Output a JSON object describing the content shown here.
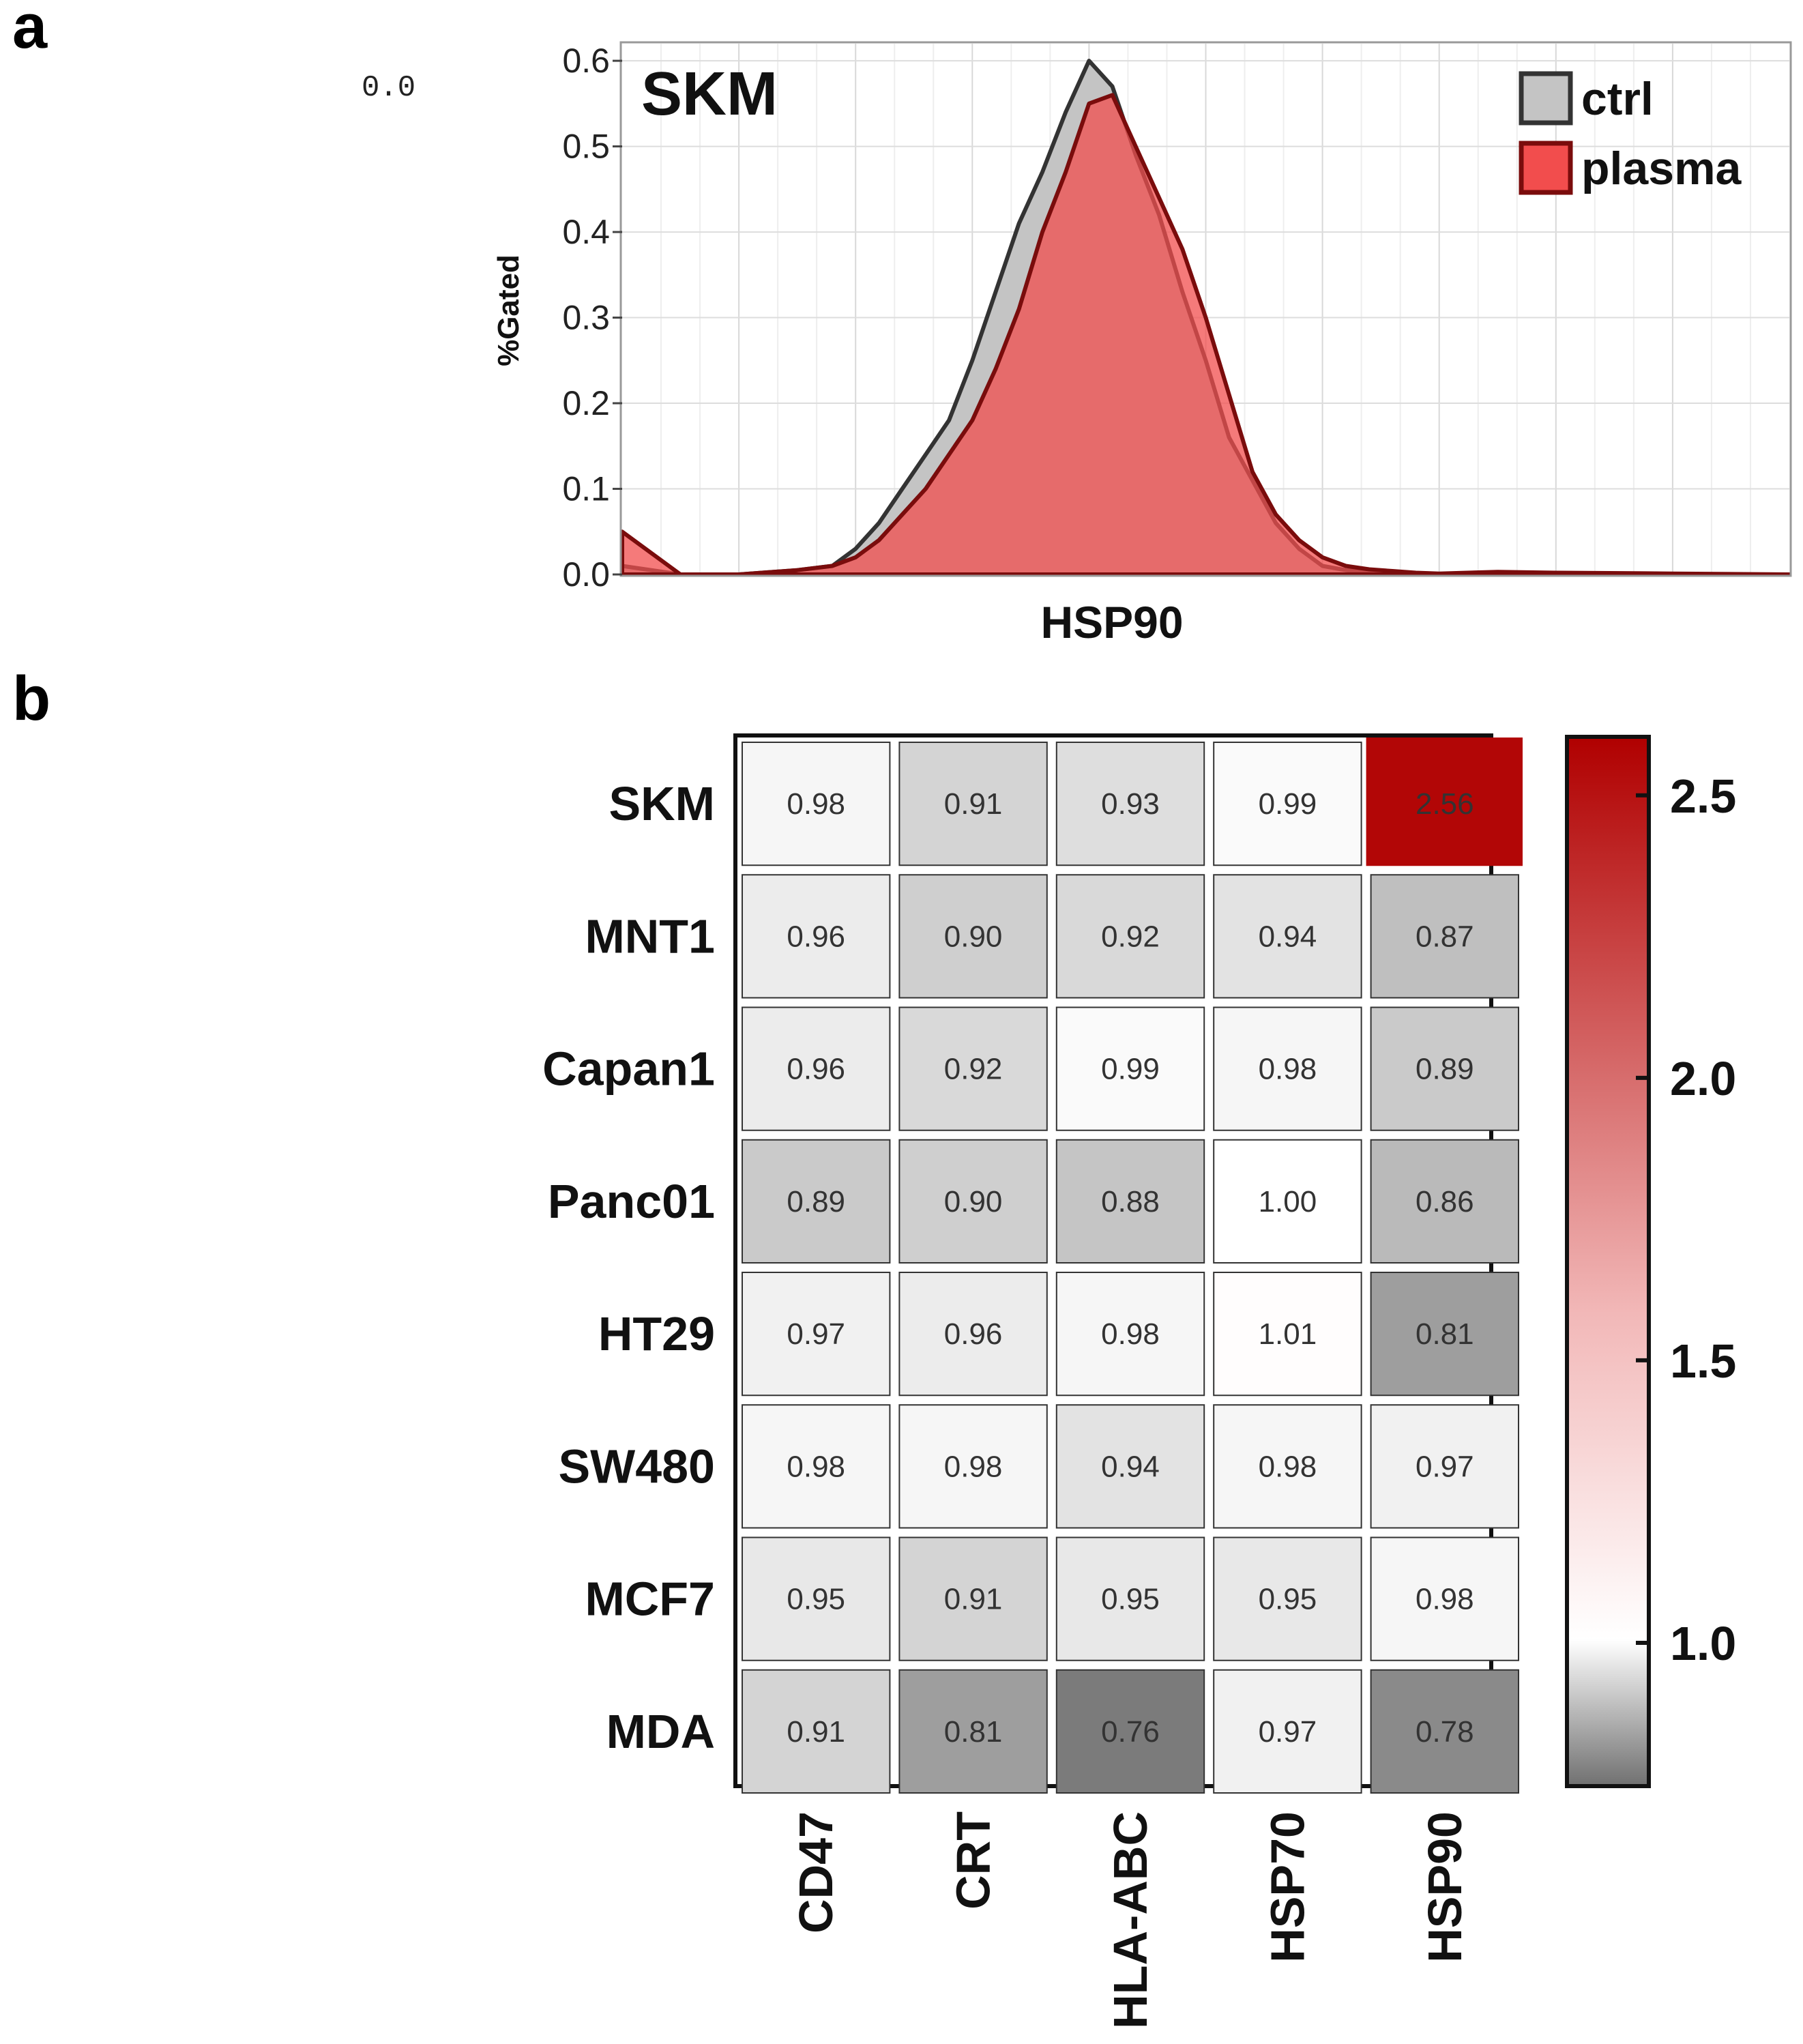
{
  "panels": {
    "a": "a",
    "b": "b"
  },
  "stray_label": "0.0",
  "chart_data": [
    {
      "type": "area",
      "title": "SKM",
      "xlabel": "HSP90",
      "ylabel": "%Gated",
      "ylim": [
        0,
        0.62
      ],
      "yticks": [
        "0.0",
        "0.1",
        "0.2",
        "0.3",
        "0.4",
        "0.5",
        "0.6"
      ],
      "ytick_values": [
        0,
        0.1,
        0.2,
        0.3,
        0.4,
        0.5,
        0.6
      ],
      "xlim": [
        0,
        100
      ],
      "grid": true,
      "legend_position": "top-right",
      "series": [
        {
          "name": "ctrl",
          "color": "#c4c4c4",
          "edge": "#333333",
          "x": [
            0,
            5,
            10,
            15,
            18,
            20,
            22,
            24,
            26,
            28,
            30,
            32,
            34,
            36,
            38,
            40,
            42,
            44,
            46,
            48,
            50,
            52,
            54,
            56,
            58,
            60,
            62,
            64,
            66,
            68,
            70,
            75,
            80,
            90,
            100
          ],
          "values": [
            0.01,
            0.0,
            0.0,
            0.005,
            0.01,
            0.03,
            0.06,
            0.1,
            0.14,
            0.18,
            0.25,
            0.33,
            0.41,
            0.47,
            0.54,
            0.6,
            0.57,
            0.49,
            0.42,
            0.33,
            0.25,
            0.16,
            0.11,
            0.06,
            0.03,
            0.01,
            0.005,
            0.003,
            0.002,
            0.001,
            0.0,
            0.0,
            0.0,
            0.0,
            0.0
          ]
        },
        {
          "name": "plasma",
          "color": "#f24d4d",
          "edge": "#7a0c0c",
          "x": [
            0,
            5,
            10,
            15,
            18,
            20,
            22,
            24,
            26,
            28,
            30,
            32,
            34,
            36,
            38,
            40,
            42,
            44,
            46,
            48,
            50,
            52,
            54,
            56,
            58,
            60,
            62,
            64,
            66,
            68,
            70,
            75,
            80,
            90,
            100
          ],
          "values": [
            0.05,
            0.0,
            0.0,
            0.005,
            0.01,
            0.02,
            0.04,
            0.07,
            0.1,
            0.14,
            0.18,
            0.24,
            0.31,
            0.4,
            0.47,
            0.55,
            0.56,
            0.5,
            0.44,
            0.38,
            0.3,
            0.21,
            0.12,
            0.07,
            0.04,
            0.02,
            0.01,
            0.006,
            0.004,
            0.002,
            0.001,
            0.003,
            0.002,
            0.001,
            0.0
          ]
        }
      ]
    },
    {
      "type": "heatmap",
      "rows": [
        "SKM",
        "MNT1",
        "Capan1",
        "Panc01",
        "HT29",
        "SW480",
        "MCF7",
        "MDA"
      ],
      "columns": [
        "CD47",
        "CRT",
        "HLA-ABC",
        "HSP70",
        "HSP90"
      ],
      "values": [
        [
          0.98,
          0.91,
          0.93,
          0.99,
          2.56
        ],
        [
          0.96,
          0.9,
          0.92,
          0.94,
          0.87
        ],
        [
          0.96,
          0.92,
          0.99,
          0.98,
          0.89
        ],
        [
          0.89,
          0.9,
          0.88,
          1.0,
          0.86
        ],
        [
          0.97,
          0.96,
          0.98,
          1.01,
          0.81
        ],
        [
          0.98,
          0.98,
          0.94,
          0.98,
          0.97
        ],
        [
          0.95,
          0.91,
          0.95,
          0.95,
          0.98
        ],
        [
          0.91,
          0.81,
          0.76,
          0.97,
          0.78
        ]
      ],
      "labels": [
        [
          "0.98",
          "0.91",
          "0.93",
          "0.99",
          "2.56"
        ],
        [
          "0.96",
          "0.90",
          "0.92",
          "0.94",
          "0.87"
        ],
        [
          "0.96",
          "0.92",
          "0.99",
          "0.98",
          "0.89"
        ],
        [
          "0.89",
          "0.90",
          "0.88",
          "1.00",
          "0.86"
        ],
        [
          "0.97",
          "0.96",
          "0.98",
          "1.01",
          "0.81"
        ],
        [
          "0.98",
          "0.98",
          "0.94",
          "0.98",
          "0.97"
        ],
        [
          "0.95",
          "0.91",
          "0.95",
          "0.95",
          "0.98"
        ],
        [
          "0.91",
          "0.81",
          "0.76",
          "0.97",
          "0.78"
        ]
      ],
      "colorbar": {
        "range": [
          0.75,
          2.6
        ],
        "ticks": [
          "2.5",
          "2.0",
          "1.5",
          "1.0"
        ],
        "tick_values": [
          2.5,
          2.0,
          1.5,
          1.0
        ],
        "low_color": "#707070",
        "mid_color": "#ffffff",
        "high_color": "#b00000",
        "mid_value": 1.0
      }
    }
  ]
}
